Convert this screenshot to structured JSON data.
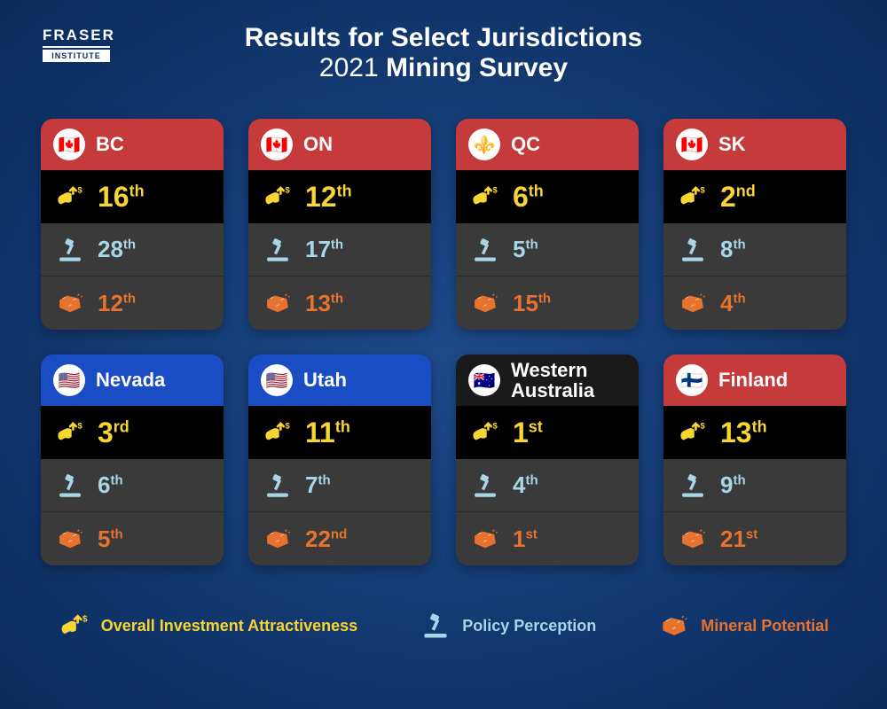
{
  "logo": {
    "top": "FRASER",
    "bottom": "INSTITUTE"
  },
  "title": {
    "line1": "Results for Select Jurisdictions",
    "year": "2021",
    "line2": "Mining Survey"
  },
  "colors": {
    "yellow": "#f7d633",
    "lightblue": "#a8d5e8",
    "orange": "#e8732e",
    "header_red": "#c53a3a",
    "header_blue": "#1a4cc4",
    "header_black": "#1a1a1a"
  },
  "cards": [
    {
      "name": "BC",
      "header": "header-red",
      "flag_emoji": "🇨🇦",
      "inv_num": "16",
      "inv_suf": "th",
      "pol_num": "28",
      "pol_suf": "th",
      "min_num": "12",
      "min_suf": "th"
    },
    {
      "name": "ON",
      "header": "header-red",
      "flag_emoji": "🇨🇦",
      "inv_num": "12",
      "inv_suf": "th",
      "pol_num": "17",
      "pol_suf": "th",
      "min_num": "13",
      "min_suf": "th"
    },
    {
      "name": "QC",
      "header": "header-red",
      "flag_emoji": "⚜️",
      "inv_num": "6",
      "inv_suf": "th",
      "pol_num": "5",
      "pol_suf": "th",
      "min_num": "15",
      "min_suf": "th"
    },
    {
      "name": "SK",
      "header": "header-red",
      "flag_emoji": "🇨🇦",
      "inv_num": "2",
      "inv_suf": "nd",
      "pol_num": "8",
      "pol_suf": "th",
      "min_num": "4",
      "min_suf": "th"
    },
    {
      "name": "Nevada",
      "header": "header-blue",
      "flag_emoji": "🇺🇸",
      "inv_num": "3",
      "inv_suf": "rd",
      "pol_num": "6",
      "pol_suf": "th",
      "min_num": "5",
      "min_suf": "th"
    },
    {
      "name": "Utah",
      "header": "header-blue",
      "flag_emoji": "🇺🇸",
      "inv_num": "11",
      "inv_suf": "th",
      "pol_num": "7",
      "pol_suf": "th",
      "min_num": "22",
      "min_suf": "nd"
    },
    {
      "name": "Western\nAustralia",
      "header": "header-black",
      "flag_emoji": "🇦🇺",
      "inv_num": "1",
      "inv_suf": "st",
      "pol_num": "4",
      "pol_suf": "th",
      "min_num": "1",
      "min_suf": "st"
    },
    {
      "name": "Finland",
      "header": "header-red",
      "flag_emoji": "🇫🇮",
      "inv_num": "13",
      "inv_suf": "th",
      "pol_num": "9",
      "pol_suf": "th",
      "min_num": "21",
      "min_suf": "st"
    }
  ],
  "legend": [
    {
      "label": "Overall Investment Attractiveness",
      "color": "color-yellow",
      "icon": "investment-icon"
    },
    {
      "label": "Policy Perception",
      "color": "color-lightblue",
      "icon": "gavel-icon"
    },
    {
      "label": "Mineral Potential",
      "color": "color-orange",
      "icon": "mineral-icon"
    }
  ]
}
